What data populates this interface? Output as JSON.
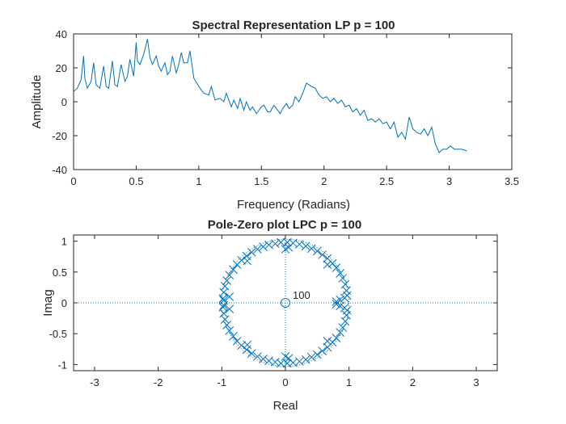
{
  "chart_data": [
    {
      "type": "line",
      "title": "Spectral Representation LP p = 100",
      "xlabel": "Frequency (Radians)",
      "ylabel": "Amplitude",
      "xlim": [
        0,
        3.5
      ],
      "ylim": [
        -40,
        40
      ],
      "xticks": [
        0,
        0.5,
        1,
        1.5,
        2,
        2.5,
        3,
        3.5
      ],
      "xtick_labels": [
        "0",
        "0.5",
        "1",
        "1.5",
        "2",
        "2.5",
        "3",
        "3.5"
      ],
      "yticks": [
        -40,
        -20,
        0,
        20,
        40
      ],
      "ytick_labels": [
        "-40",
        "-20",
        "0",
        "20",
        "40"
      ],
      "grid": false,
      "color": "#0072BD",
      "series": [
        {
          "x": [
            0,
            0.03,
            0.06,
            0.08,
            0.09,
            0.11,
            0.14,
            0.16,
            0.18,
            0.21,
            0.24,
            0.26,
            0.28,
            0.31,
            0.33,
            0.35,
            0.38,
            0.41,
            0.43,
            0.45,
            0.48,
            0.5,
            0.51,
            0.53,
            0.56,
            0.59,
            0.61,
            0.63,
            0.66,
            0.68,
            0.7,
            0.73,
            0.75,
            0.77,
            0.79,
            0.82,
            0.84,
            0.86,
            0.88,
            0.91,
            0.93,
            0.96,
            1.0,
            1.04,
            1.08,
            1.1,
            1.13,
            1.17,
            1.2,
            1.22,
            1.26,
            1.28,
            1.31,
            1.33,
            1.36,
            1.38,
            1.41,
            1.43,
            1.46,
            1.48,
            1.5,
            1.52,
            1.55,
            1.57,
            1.6,
            1.62,
            1.65,
            1.67,
            1.7,
            1.72,
            1.75,
            1.77,
            1.8,
            1.83,
            1.86,
            1.9,
            1.93,
            1.96,
            1.99,
            2.02,
            2.05,
            2.08,
            2.11,
            2.14,
            2.17,
            2.2,
            2.23,
            2.26,
            2.29,
            2.32,
            2.35,
            2.38,
            2.41,
            2.44,
            2.47,
            2.5,
            2.53,
            2.56,
            2.59,
            2.62,
            2.65,
            2.68,
            2.71,
            2.74,
            2.77,
            2.8,
            2.83,
            2.86,
            2.89,
            2.92,
            2.95,
            2.98,
            3.01,
            3.04,
            3.07,
            3.1,
            3.14
          ],
          "y": [
            6,
            8,
            13,
            27,
            14,
            8,
            12,
            23,
            10,
            8,
            21,
            9,
            8,
            24,
            10,
            9,
            22,
            12,
            15,
            25,
            15,
            35,
            24,
            22,
            28,
            37,
            26,
            22,
            27,
            21,
            18,
            23,
            16,
            18,
            27,
            17,
            22,
            29,
            23,
            23,
            30,
            14,
            9,
            5,
            4,
            9,
            1,
            2,
            0,
            5,
            -3,
            1,
            -4,
            2,
            -5,
            0,
            -5,
            -3,
            -7,
            -5,
            -3,
            -2,
            -6,
            -6,
            -2,
            -4,
            -7,
            -4,
            -1,
            -4,
            -2,
            3,
            0,
            5,
            11,
            9,
            8,
            4,
            2,
            3,
            0,
            2,
            -1,
            1,
            -3,
            -2,
            -6,
            -4,
            -8,
            -5,
            -11,
            -10,
            -12,
            -10,
            -13,
            -12,
            -16,
            -12,
            -21,
            -18,
            -22,
            -9,
            -16,
            -18,
            -19,
            -16,
            -20,
            -15,
            -25,
            -30,
            -28,
            -28,
            -26,
            -28,
            -28,
            -28,
            -29
          ]
        }
      ]
    },
    {
      "type": "scatter",
      "title": "Pole-Zero plot  LPC p = 100",
      "xlabel": "Real",
      "ylabel": "Imag",
      "xlim": [
        -3.33,
        3.33
      ],
      "ylim": [
        -1.1,
        1.1
      ],
      "xticks": [
        -3,
        -2,
        -1,
        0,
        1,
        2,
        3
      ],
      "xtick_labels": [
        "-3",
        "-2",
        "-1",
        "0",
        "1",
        "2",
        "3"
      ],
      "yticks": [
        -1,
        -0.5,
        0,
        0.5,
        1
      ],
      "ytick_labels": [
        "-1",
        "-0.5",
        "0",
        "0.5",
        "1"
      ],
      "grid": false,
      "color": "#0072BD",
      "zero_multiplicity_label": "100",
      "zeros": [
        [
          0,
          0
        ]
      ],
      "poles": [
        [
          0.97,
          0.12
        ],
        [
          0.96,
          0.2
        ],
        [
          0.94,
          0.3
        ],
        [
          0.9,
          0.4
        ],
        [
          0.86,
          0.48
        ],
        [
          0.8,
          0.57
        ],
        [
          0.74,
          0.64
        ],
        [
          0.66,
          0.72
        ],
        [
          0.58,
          0.78
        ],
        [
          0.5,
          0.84
        ],
        [
          0.41,
          0.88
        ],
        [
          0.32,
          0.92
        ],
        [
          0.22,
          0.95
        ],
        [
          0.12,
          0.97
        ],
        [
          0.03,
          0.98
        ],
        [
          -0.07,
          0.98
        ],
        [
          -0.16,
          0.96
        ],
        [
          -0.26,
          0.94
        ],
        [
          -0.35,
          0.91
        ],
        [
          -0.44,
          0.87
        ],
        [
          -0.53,
          0.82
        ],
        [
          -0.61,
          0.76
        ],
        [
          -0.69,
          0.69
        ],
        [
          -0.76,
          0.62
        ],
        [
          -0.82,
          0.54
        ],
        [
          -0.88,
          0.45
        ],
        [
          -0.92,
          0.36
        ],
        [
          -0.95,
          0.27
        ],
        [
          -0.97,
          0.17
        ],
        [
          -0.98,
          0.07
        ],
        [
          -0.97,
          0.04
        ],
        [
          -0.97,
          -0.04
        ],
        [
          -0.98,
          -0.07
        ],
        [
          -0.97,
          -0.17
        ],
        [
          -0.95,
          -0.27
        ],
        [
          -0.92,
          -0.36
        ],
        [
          -0.88,
          -0.45
        ],
        [
          -0.82,
          -0.54
        ],
        [
          -0.76,
          -0.62
        ],
        [
          -0.69,
          -0.69
        ],
        [
          -0.61,
          -0.76
        ],
        [
          -0.53,
          -0.82
        ],
        [
          -0.44,
          -0.87
        ],
        [
          -0.35,
          -0.91
        ],
        [
          -0.26,
          -0.94
        ],
        [
          -0.16,
          -0.96
        ],
        [
          -0.07,
          -0.98
        ],
        [
          0.03,
          -0.98
        ],
        [
          0.12,
          -0.97
        ],
        [
          0.22,
          -0.95
        ],
        [
          0.32,
          -0.92
        ],
        [
          0.41,
          -0.88
        ],
        [
          0.5,
          -0.84
        ],
        [
          0.58,
          -0.78
        ],
        [
          0.66,
          -0.72
        ],
        [
          0.74,
          -0.64
        ],
        [
          0.8,
          -0.57
        ],
        [
          0.86,
          -0.48
        ],
        [
          0.9,
          -0.4
        ],
        [
          0.94,
          -0.3
        ],
        [
          0.96,
          -0.2
        ],
        [
          0.97,
          -0.12
        ],
        [
          0.8,
          0.02
        ],
        [
          0.8,
          -0.02
        ],
        [
          0.86,
          0.05
        ],
        [
          0.86,
          -0.05
        ],
        [
          0.93,
          0.08
        ],
        [
          0.93,
          -0.08
        ],
        [
          0.0,
          0.87
        ],
        [
          0.0,
          -0.87
        ],
        [
          0.05,
          0.9
        ],
        [
          0.05,
          -0.9
        ],
        [
          -0.88,
          0.1
        ],
        [
          -0.88,
          -0.1
        ],
        [
          0.66,
          0.62
        ],
        [
          0.66,
          -0.62
        ],
        [
          -0.6,
          0.68
        ],
        [
          -0.6,
          -0.68
        ]
      ]
    }
  ]
}
